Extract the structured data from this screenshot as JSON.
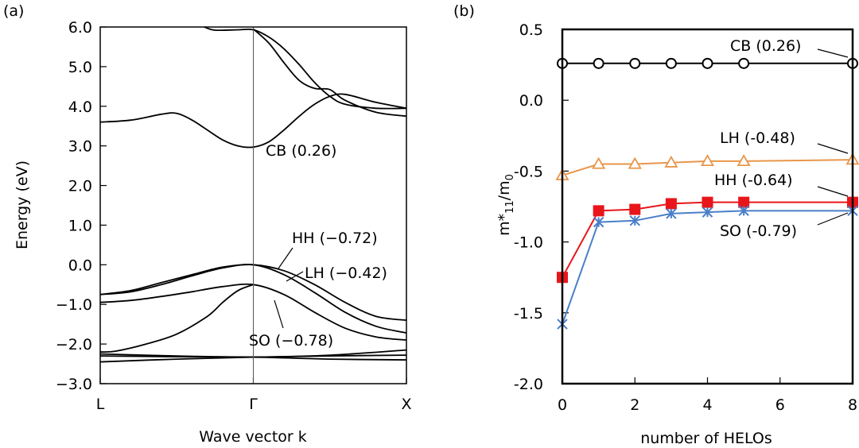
{
  "chart_data": [
    {
      "panel": "(a)",
      "type": "line",
      "xlabel": "Wave vector k",
      "ylabel": "Energy (eV)",
      "x_ticks": [
        "L",
        "Γ",
        "X"
      ],
      "ylim": [
        -3.0,
        6.0
      ],
      "y_ticks": [
        "6.0",
        "5.0",
        "4.0",
        "3.0",
        "2.0",
        "1.0",
        "0.0",
        "−1.0",
        "−2.0",
        "−3.0"
      ],
      "y_tick_values": [
        6,
        5,
        4,
        3,
        2,
        1,
        0,
        -1,
        -2,
        -3
      ],
      "note": "x values: L = -1, Γ = 0, X = 1",
      "bands": [
        {
          "name": "upper-cb-1",
          "points": [
            [
              -0.32,
              6.0
            ],
            [
              -0.25,
              5.92
            ],
            [
              -0.1,
              5.93
            ],
            [
              0,
              5.93
            ],
            [
              0.1,
              5.75
            ],
            [
              0.2,
              5.45
            ],
            [
              0.3,
              5.05
            ],
            [
              0.4,
              4.6
            ],
            [
              0.5,
              4.25
            ],
            [
              0.6,
              4.05
            ],
            [
              0.8,
              3.95
            ],
            [
              1,
              3.95
            ]
          ]
        },
        {
          "name": "upper-cb-2",
          "points": [
            [
              0,
              5.95
            ],
            [
              0.1,
              5.6
            ],
            [
              0.2,
              5.1
            ],
            [
              0.3,
              4.65
            ],
            [
              0.4,
              4.45
            ],
            [
              0.5,
              4.42
            ],
            [
              0.6,
              4.15
            ],
            [
              0.8,
              3.85
            ],
            [
              1,
              3.75
            ]
          ]
        },
        {
          "name": "CB",
          "points": [
            [
              -1,
              3.6
            ],
            [
              -0.8,
              3.65
            ],
            [
              -0.6,
              3.8
            ],
            [
              -0.5,
              3.82
            ],
            [
              -0.4,
              3.65
            ],
            [
              -0.3,
              3.4
            ],
            [
              -0.2,
              3.15
            ],
            [
              -0.1,
              3.0
            ],
            [
              0,
              2.97
            ],
            [
              0.1,
              3.1
            ],
            [
              0.2,
              3.4
            ],
            [
              0.3,
              3.75
            ],
            [
              0.4,
              4.05
            ],
            [
              0.5,
              4.25
            ],
            [
              0.6,
              4.3
            ],
            [
              0.8,
              4.1
            ],
            [
              1,
              3.95
            ]
          ]
        },
        {
          "name": "HH",
          "points": [
            [
              -1,
              -0.75
            ],
            [
              -0.8,
              -0.65
            ],
            [
              -0.6,
              -0.45
            ],
            [
              -0.4,
              -0.25
            ],
            [
              -0.2,
              -0.06
            ],
            [
              0,
              0.0
            ],
            [
              0.2,
              -0.15
            ],
            [
              0.4,
              -0.5
            ],
            [
              0.6,
              -0.95
            ],
            [
              0.8,
              -1.3
            ],
            [
              1,
              -1.4
            ]
          ]
        },
        {
          "name": "LH",
          "points": [
            [
              -1,
              -0.75
            ],
            [
              -0.8,
              -0.68
            ],
            [
              -0.6,
              -0.5
            ],
            [
              -0.4,
              -0.28
            ],
            [
              -0.2,
              -0.08
            ],
            [
              0,
              0.0
            ],
            [
              0.2,
              -0.25
            ],
            [
              0.4,
              -0.7
            ],
            [
              0.6,
              -1.2
            ],
            [
              0.8,
              -1.55
            ],
            [
              1,
              -1.72
            ]
          ]
        },
        {
          "name": "SO",
          "points": [
            [
              -1,
              -0.95
            ],
            [
              -0.8,
              -0.9
            ],
            [
              -0.6,
              -0.8
            ],
            [
              -0.4,
              -0.68
            ],
            [
              -0.2,
              -0.55
            ],
            [
              0,
              -0.5
            ],
            [
              0.2,
              -0.75
            ],
            [
              0.4,
              -1.2
            ],
            [
              0.6,
              -1.6
            ],
            [
              0.8,
              -1.82
            ],
            [
              1,
              -1.9
            ]
          ]
        },
        {
          "name": "deep-1",
          "points": [
            [
              -1,
              -2.2
            ],
            [
              -0.9,
              -2.18
            ],
            [
              -0.7,
              -2.0
            ],
            [
              -0.5,
              -1.75
            ],
            [
              -0.3,
              -1.3
            ],
            [
              -0.2,
              -0.95
            ],
            [
              -0.1,
              -0.65
            ],
            [
              0,
              -0.5
            ]
          ]
        },
        {
          "name": "deep-2",
          "points": [
            [
              -1,
              -2.25
            ],
            [
              -0.5,
              -2.3
            ],
            [
              0,
              -2.33
            ],
            [
              0.5,
              -2.28
            ],
            [
              1,
              -2.15
            ]
          ]
        },
        {
          "name": "deep-3",
          "points": [
            [
              -1,
              -2.3
            ],
            [
              -0.5,
              -2.32
            ],
            [
              0,
              -2.33
            ],
            [
              0.5,
              -2.38
            ],
            [
              1,
              -2.4
            ]
          ]
        },
        {
          "name": "deep-4",
          "points": [
            [
              -1,
              -2.45
            ],
            [
              -0.5,
              -2.38
            ],
            [
              0,
              -2.33
            ],
            [
              0.5,
              -2.3
            ],
            [
              1,
              -2.28
            ]
          ]
        }
      ],
      "annotations": [
        "CB (0.26)",
        "HH (−0.72)",
        "LH (−0.42)",
        "SO (−0.78)"
      ]
    },
    {
      "panel": "(b)",
      "type": "line",
      "xlabel": "number of HELOs",
      "ylabel_main": "m*",
      "ylabel_sub": "11",
      "ylabel_tail": "/m",
      "ylabel_sub2": "0",
      "xlim": [
        0,
        8
      ],
      "ylim": [
        -2.0,
        0.5
      ],
      "x_ticks": [
        "0",
        "2",
        "4",
        "6",
        "8"
      ],
      "x_tick_values": [
        0,
        2,
        4,
        6,
        8
      ],
      "y_ticks": [
        "0.5",
        "0.0",
        "-0.5",
        "-1.0",
        "-1.5",
        "-2.0"
      ],
      "y_tick_values": [
        0.5,
        0.0,
        -0.5,
        -1.0,
        -1.5,
        -2.0
      ],
      "series": [
        {
          "name": "CB",
          "label": "CB (0.26)",
          "color": "#000000",
          "marker": "circle",
          "x": [
            0,
            1,
            2,
            3,
            4,
            5,
            8
          ],
          "values": [
            0.26,
            0.26,
            0.26,
            0.26,
            0.26,
            0.26,
            0.26
          ]
        },
        {
          "name": "LH",
          "label": "LH (-0.48)",
          "color": "#e8964a",
          "marker": "triangle",
          "x": [
            0,
            1,
            2,
            3,
            4,
            5,
            8
          ],
          "values": [
            -0.53,
            -0.45,
            -0.45,
            -0.44,
            -0.43,
            -0.43,
            -0.42
          ]
        },
        {
          "name": "HH",
          "label": "HH (-0.64)",
          "color": "#e8161b",
          "marker": "square",
          "x": [
            0,
            1,
            2,
            3,
            4,
            5,
            8
          ],
          "values": [
            -1.25,
            -0.78,
            -0.77,
            -0.73,
            -0.72,
            -0.72,
            -0.72
          ]
        },
        {
          "name": "SO",
          "label": "SO (-0.79)",
          "color": "#4a7fc7",
          "marker": "asterisk",
          "x": [
            0,
            1,
            2,
            3,
            4,
            5,
            8
          ],
          "values": [
            -1.58,
            -0.86,
            -0.85,
            -0.8,
            -0.79,
            -0.78,
            -0.78
          ]
        }
      ]
    }
  ]
}
